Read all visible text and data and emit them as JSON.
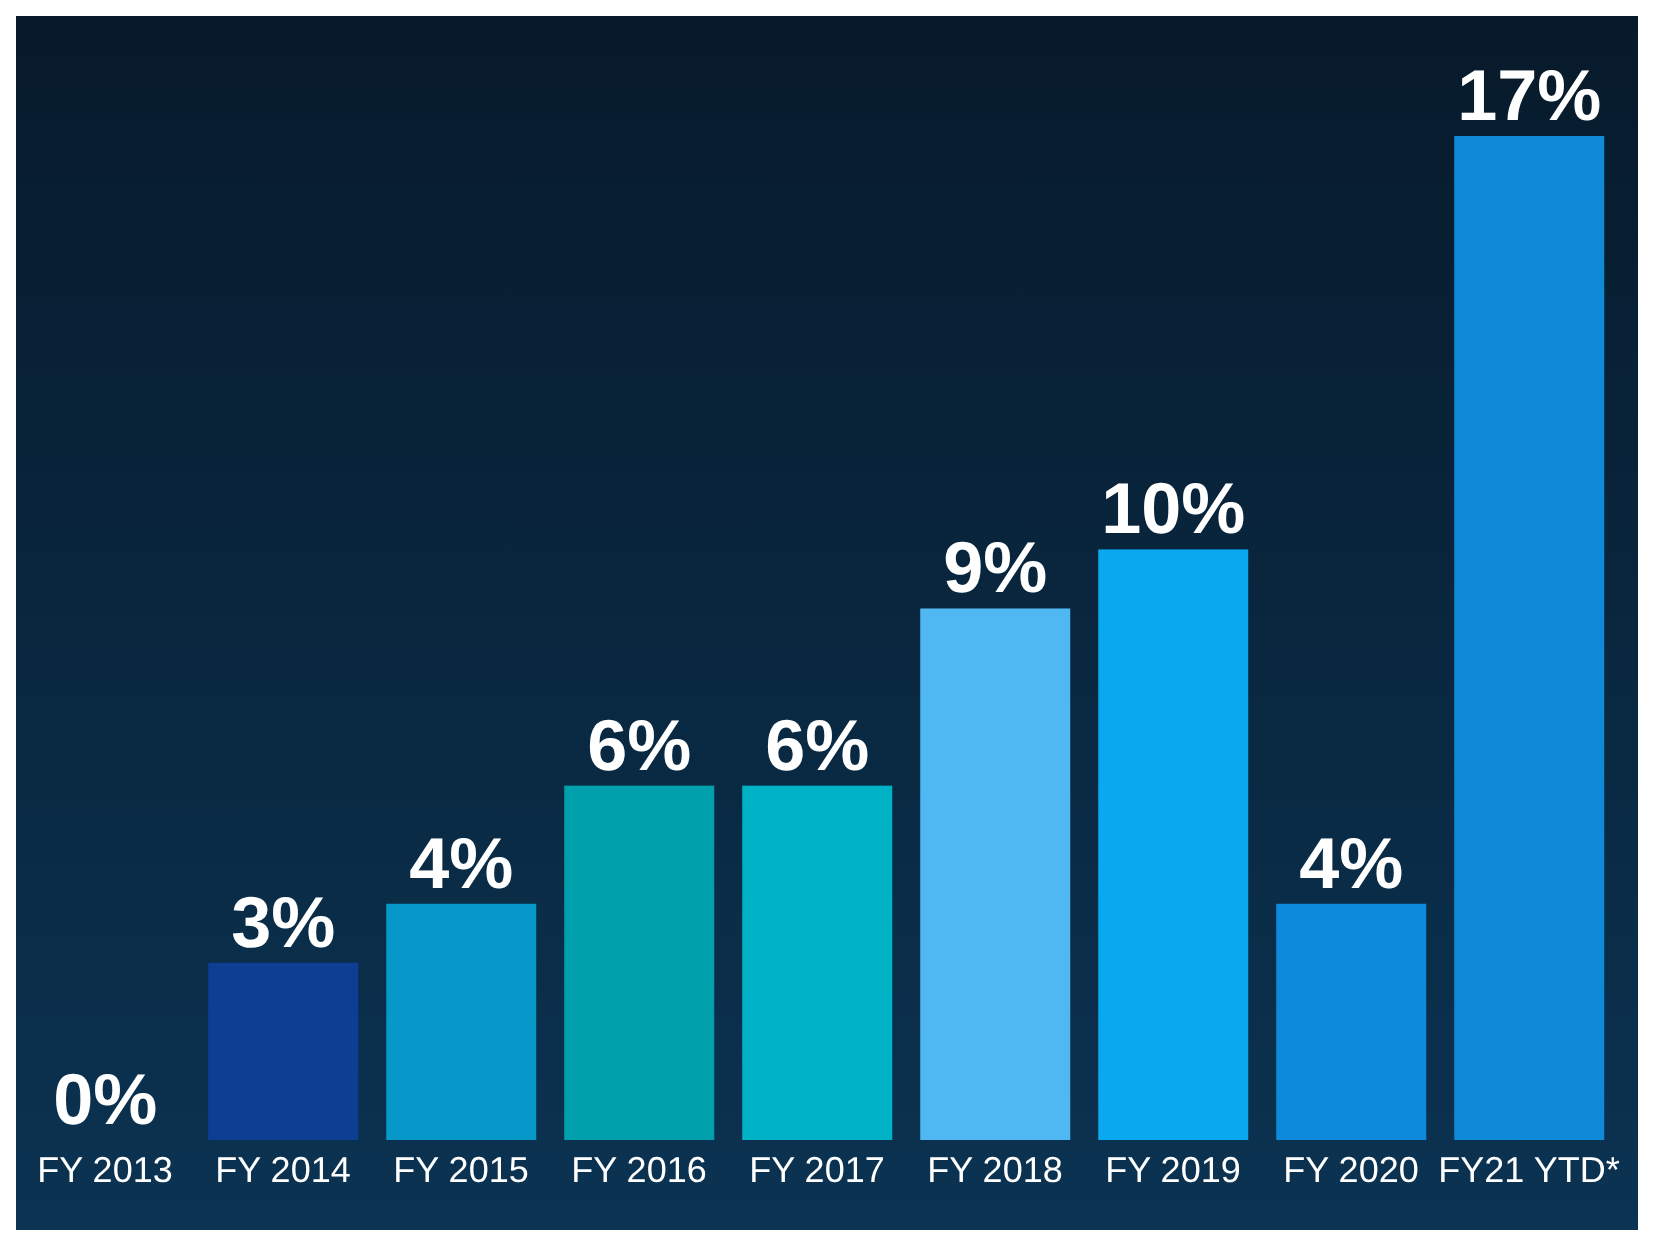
{
  "chart_data": {
    "type": "bar",
    "categories": [
      "FY 2013",
      "FY 2014",
      "FY 2015",
      "FY 2016",
      "FY 2017",
      "FY 2018",
      "FY 2019",
      "FY 2020",
      "FY21 YTD*"
    ],
    "values": [
      0,
      3,
      4,
      6,
      6,
      9,
      10,
      4,
      17
    ],
    "value_labels": [
      "0%",
      "3%",
      "4%",
      "6%",
      "6%",
      "9%",
      "10%",
      "4%",
      "17%"
    ],
    "colors": [
      "#0a6fc0",
      "#0c3f93",
      "#0598c8",
      "#00a0ac",
      "#00b2c6",
      "#4fb8f2",
      "#0aa8ee",
      "#0e8add",
      "#0e8ad8"
    ],
    "grid": false,
    "legend": false
  }
}
